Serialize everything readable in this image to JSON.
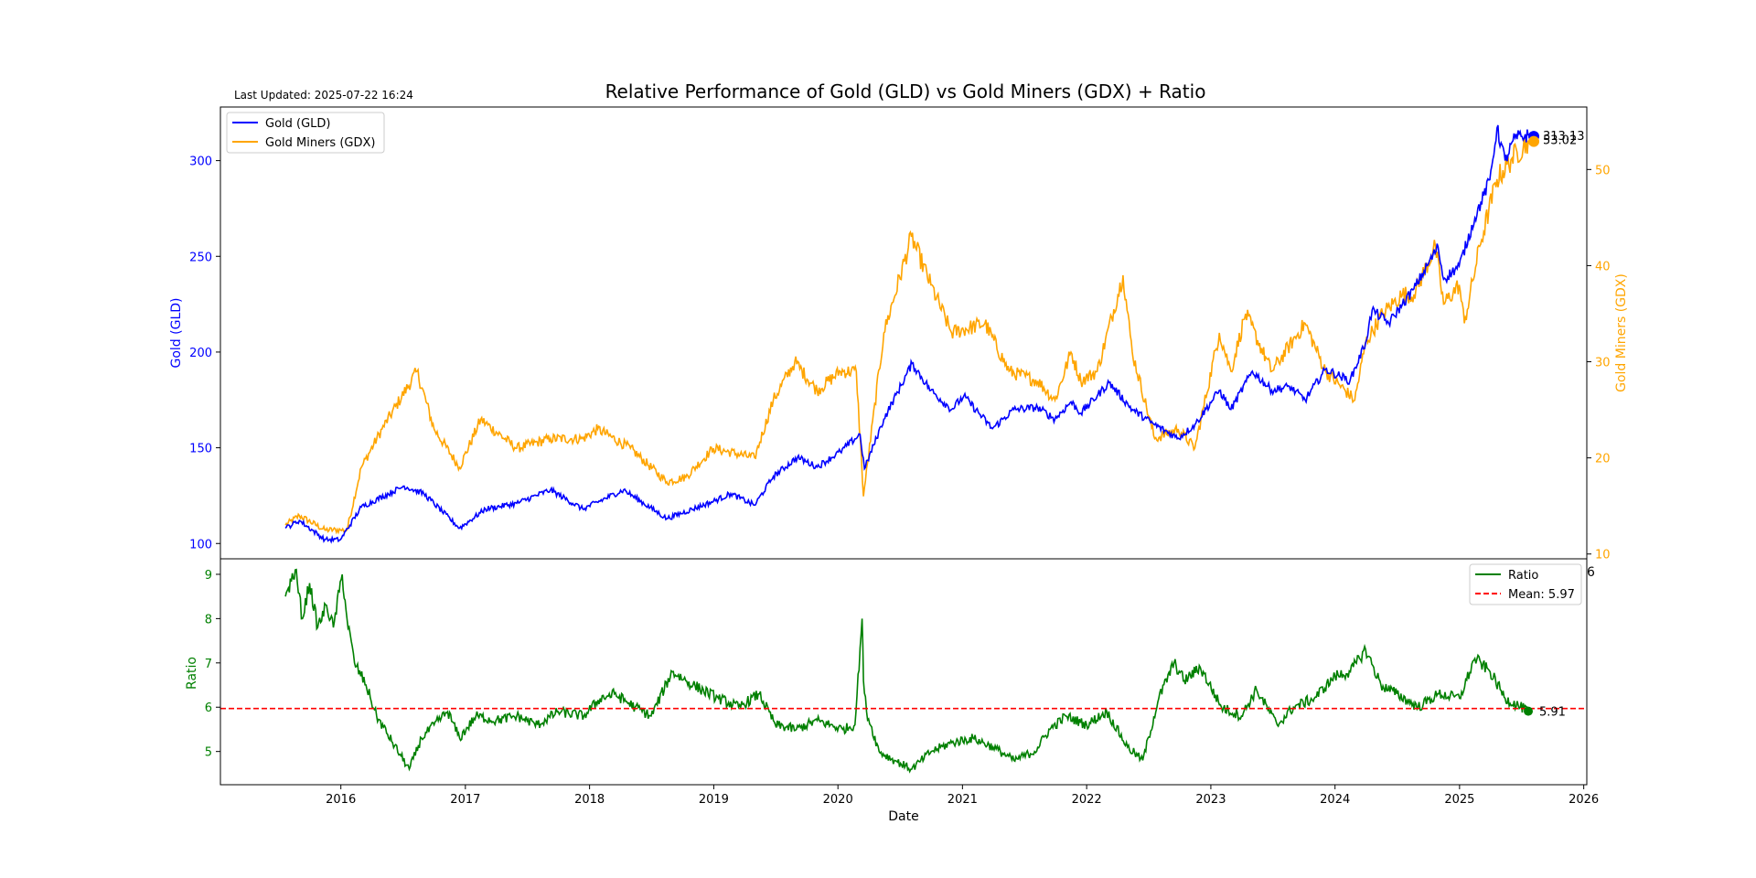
{
  "last_updated": "Last Updated: 2025-07-22 16:24",
  "colors": {
    "gld": "#0000ff",
    "gdx": "#ffa500",
    "ratio": "#008000",
    "mean": "#ff0000",
    "axis": "#000000"
  },
  "chart_data": [
    {
      "type": "line",
      "title": "Relative Performance of Gold (GLD) vs Gold Miners (GDX) + Ratio",
      "xlabel": "",
      "ylabel_left": "Gold (GLD)",
      "ylabel_right": "Gold Miners (GDX)",
      "ylim_left": [
        92,
        328
      ],
      "ylim_right": [
        9.5,
        56.5
      ],
      "yticks_left": [
        100,
        150,
        200,
        250,
        300
      ],
      "yticks_right": [
        10,
        20,
        30,
        40,
        50
      ],
      "legend_position": "top-left",
      "last_value_labels": {
        "gld": "313.13",
        "gdx": "53.02"
      },
      "stray_right_label": "6",
      "series": [
        {
          "name": "Gold (GLD)",
          "axis": "left",
          "x": [
            "2015-07-22",
            "2015-09-01",
            "2015-11-15",
            "2015-12-31",
            "2016-03-01",
            "2016-07-05",
            "2016-09-01",
            "2016-12-15",
            "2017-03-01",
            "2017-06-01",
            "2017-09-08",
            "2017-12-12",
            "2018-04-11",
            "2018-08-16",
            "2018-12-31",
            "2019-02-20",
            "2019-05-01",
            "2019-06-25",
            "2019-09-04",
            "2019-11-01",
            "2020-01-08",
            "2020-03-06",
            "2020-03-19",
            "2020-05-15",
            "2020-08-06",
            "2020-09-30",
            "2020-11-30",
            "2021-01-05",
            "2021-03-30",
            "2021-06-01",
            "2021-08-10",
            "2021-09-30",
            "2021-11-16",
            "2021-12-15",
            "2022-03-08",
            "2022-05-15",
            "2022-07-20",
            "2022-09-27",
            "2022-11-15",
            "2023-01-26",
            "2023-03-01",
            "2023-05-03",
            "2023-06-29",
            "2023-08-20",
            "2023-10-05",
            "2023-12-04",
            "2024-02-14",
            "2024-03-31",
            "2024-04-19",
            "2024-06-07",
            "2024-07-17",
            "2024-08-20",
            "2024-10-30",
            "2024-11-15",
            "2024-12-31",
            "2025-02-15",
            "2025-03-31",
            "2025-04-21",
            "2025-05-15",
            "2025-06-13",
            "2025-07-22"
          ],
          "values": [
            108,
            112,
            102,
            102,
            119,
            130,
            126,
            108,
            118,
            121,
            128,
            118,
            128,
            113,
            122,
            126,
            120,
            135,
            145,
            140,
            148,
            157,
            139,
            165,
            194,
            180,
            170,
            177,
            160,
            170,
            171,
            165,
            174,
            168,
            184,
            170,
            162,
            155,
            162,
            180,
            170,
            190,
            180,
            182,
            175,
            191,
            185,
            205,
            222,
            215,
            225,
            233,
            255,
            238,
            245,
            270,
            290,
            317,
            300,
            312,
            313.13
          ]
        },
        {
          "name": "Gold Miners (GDX)",
          "axis": "right",
          "x": [
            "2015-07-22",
            "2015-09-01",
            "2015-11-15",
            "2015-12-31",
            "2016-01-19",
            "2016-03-01",
            "2016-05-01",
            "2016-08-12",
            "2016-10-01",
            "2016-12-15",
            "2017-02-15",
            "2017-06-01",
            "2017-09-08",
            "2017-12-12",
            "2018-01-25",
            "2018-05-01",
            "2018-08-16",
            "2018-10-11",
            "2018-12-31",
            "2019-05-01",
            "2019-06-25",
            "2019-08-27",
            "2019-11-01",
            "2020-01-08",
            "2020-02-24",
            "2020-03-16",
            "2020-05-15",
            "2020-08-04",
            "2020-09-30",
            "2020-11-30",
            "2021-03-08",
            "2021-05-18",
            "2021-08-10",
            "2021-09-30",
            "2021-11-16",
            "2021-12-15",
            "2022-02-01",
            "2022-04-18",
            "2022-05-15",
            "2022-07-20",
            "2022-09-27",
            "2022-11-15",
            "2023-01-26",
            "2023-03-01",
            "2023-04-13",
            "2023-06-29",
            "2023-10-05",
            "2023-12-04",
            "2024-02-28",
            "2024-03-31",
            "2024-05-20",
            "2024-07-17",
            "2024-08-20",
            "2024-10-22",
            "2024-11-15",
            "2024-12-31",
            "2025-01-15",
            "2025-03-01",
            "2025-04-21",
            "2025-06-01",
            "2025-07-22"
          ],
          "values": [
            13,
            14,
            12.5,
            12.5,
            12.5,
            19,
            23,
            29,
            23,
            19,
            24,
            21,
            22,
            22,
            23,
            21,
            17.5,
            18,
            21,
            20,
            26,
            30,
            27,
            29,
            29,
            16,
            33,
            43,
            38,
            33,
            34,
            29,
            28,
            26,
            31,
            28,
            29,
            39,
            31,
            22,
            23,
            21,
            33,
            29,
            35,
            29,
            34,
            29,
            26,
            32,
            35,
            37,
            37,
            42,
            36,
            38,
            34,
            42,
            49,
            51,
            53.02
          ]
        }
      ]
    },
    {
      "type": "line",
      "title": "",
      "xlabel": "Date",
      "ylabel": "Ratio",
      "xlim": [
        "2015-01-12",
        "2026-01-10"
      ],
      "xticks": [
        "2016",
        "2017",
        "2018",
        "2019",
        "2020",
        "2021",
        "2022",
        "2023",
        "2024",
        "2025",
        "2026"
      ],
      "ylim": [
        4.25,
        9.35
      ],
      "yticks": [
        5,
        6,
        7,
        8,
        9
      ],
      "legend_position": "top-right",
      "last_value_label": "5.91",
      "mean": {
        "value": 5.97,
        "label": "Mean: 5.97"
      },
      "series": [
        {
          "name": "Ratio",
          "x": [
            "2015-07-22",
            "2015-08-20",
            "2015-09-10",
            "2015-10-01",
            "2015-10-25",
            "2015-11-20",
            "2015-12-10",
            "2016-01-05",
            "2016-01-19",
            "2016-02-10",
            "2016-03-15",
            "2016-04-15",
            "2016-06-01",
            "2016-07-20",
            "2016-08-25",
            "2016-10-01",
            "2016-11-10",
            "2016-12-15",
            "2017-02-01",
            "2017-04-01",
            "2017-06-01",
            "2017-08-01",
            "2017-10-01",
            "2017-12-15",
            "2018-02-01",
            "2018-03-15",
            "2018-05-15",
            "2018-07-01",
            "2018-09-01",
            "2018-11-01",
            "2019-01-15",
            "2019-03-15",
            "2019-05-15",
            "2019-07-01",
            "2019-09-01",
            "2019-11-01",
            "2020-01-15",
            "2020-02-20",
            "2020-03-12",
            "2020-03-16",
            "2020-03-25",
            "2020-05-01",
            "2020-06-15",
            "2020-08-05",
            "2020-10-01",
            "2020-12-01",
            "2021-02-01",
            "2021-04-01",
            "2021-06-01",
            "2021-08-01",
            "2021-09-15",
            "2021-11-01",
            "2022-01-01",
            "2022-03-01",
            "2022-05-01",
            "2022-06-15",
            "2022-08-01",
            "2022-09-15",
            "2022-10-15",
            "2022-12-01",
            "2023-02-01",
            "2023-04-01",
            "2023-05-15",
            "2023-07-15",
            "2023-09-01",
            "2023-11-01",
            "2024-01-01",
            "2024-02-15",
            "2024-03-31",
            "2024-05-15",
            "2024-07-01",
            "2024-09-01",
            "2024-11-01",
            "2025-01-01",
            "2025-02-15",
            "2025-04-01",
            "2025-05-15",
            "2025-07-22"
          ],
          "values": [
            8.5,
            9.1,
            8.0,
            8.8,
            7.8,
            8.3,
            7.8,
            9.0,
            8.0,
            7.0,
            6.5,
            5.8,
            5.2,
            4.6,
            5.3,
            5.6,
            5.9,
            5.3,
            5.8,
            5.7,
            5.8,
            5.6,
            5.9,
            5.8,
            6.2,
            6.3,
            6.0,
            5.8,
            6.8,
            6.5,
            6.2,
            6.0,
            6.3,
            5.6,
            5.5,
            5.7,
            5.5,
            5.6,
            8.0,
            6.6,
            5.9,
            5.0,
            4.8,
            4.6,
            5.0,
            5.2,
            5.3,
            5.1,
            4.8,
            5.0,
            5.5,
            5.8,
            5.6,
            5.9,
            5.1,
            4.8,
            6.2,
            7.0,
            6.6,
            6.9,
            6.0,
            5.8,
            6.4,
            5.6,
            6.0,
            6.2,
            6.7,
            6.8,
            7.3,
            6.5,
            6.3,
            6.0,
            6.3,
            6.2,
            7.1,
            6.8,
            6.2,
            5.91
          ]
        }
      ]
    }
  ]
}
